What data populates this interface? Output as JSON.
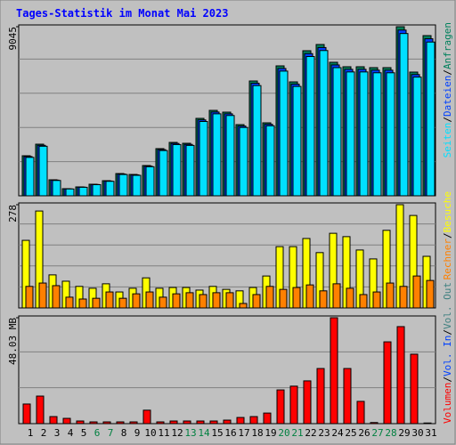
{
  "title": "Tages-Statistik im Monat Mai 2023",
  "legend_separator": "/",
  "chart_data": [
    {
      "type": "bar",
      "series": [
        {
          "name": "Anfragen",
          "color": "#00805c",
          "values": [
            2142,
            2761,
            857,
            381,
            476,
            619,
            809,
            1190,
            1143,
            1619,
            2523,
            2856,
            2809,
            4142,
            4570,
            4475,
            3808,
            6141,
            3904,
            6950,
            6093,
            7760,
            8093,
            7141,
            6903,
            6903,
            6855,
            6855,
            9045,
            6617,
            8569
          ]
        },
        {
          "name": "Dateien",
          "color": "#0040ff",
          "values": [
            2100,
            2700,
            840,
            370,
            465,
            605,
            790,
            1165,
            1120,
            1585,
            2470,
            2800,
            2750,
            4060,
            4480,
            4385,
            3730,
            6020,
            3825,
            6810,
            5970,
            7605,
            7930,
            7000,
            6765,
            6765,
            6720,
            6720,
            8865,
            6485,
            8400
          ]
        },
        {
          "name": "Seiten",
          "color": "#00e0ff",
          "values": [
            2055,
            2650,
            820,
            365,
            455,
            595,
            775,
            1140,
            1095,
            1555,
            2420,
            2740,
            2695,
            3975,
            4385,
            4295,
            3655,
            5895,
            3745,
            6670,
            5850,
            7450,
            7770,
            6855,
            6625,
            6625,
            6580,
            6580,
            8680,
            6350,
            8225
          ]
        }
      ],
      "ylim": [
        0,
        9045
      ],
      "yticks": [
        9045
      ],
      "grid_divisions": 5
    },
    {
      "type": "bar",
      "series": [
        {
          "name": "Besuche",
          "color": "#ffff00",
          "values": [
            182,
            261,
            89,
            72,
            58,
            53,
            65,
            43,
            53,
            81,
            53,
            55,
            55,
            48,
            58,
            50,
            46,
            55,
            86,
            165,
            165,
            187,
            149,
            201,
            192,
            156,
            132,
            209,
            278,
            249,
            139
          ]
        },
        {
          "name": "Rechner",
          "color": "#ff8000",
          "values": [
            58,
            67,
            60,
            29,
            24,
            26,
            43,
            26,
            38,
            43,
            29,
            38,
            41,
            36,
            41,
            41,
            12,
            36,
            58,
            50,
            55,
            62,
            46,
            65,
            53,
            36,
            43,
            67,
            58,
            86,
            74
          ]
        }
      ],
      "ylim": [
        0,
        278
      ],
      "yticks": [
        278
      ],
      "grid_divisions": 5
    },
    {
      "type": "bar",
      "categories": [
        "1",
        "2",
        "3",
        "4",
        "5",
        "6",
        "7",
        "8",
        "9",
        "10",
        "11",
        "12",
        "13",
        "14",
        "15",
        "16",
        "17",
        "18",
        "19",
        "20",
        "21",
        "22",
        "23",
        "24",
        "25",
        "26",
        "27",
        "28",
        "29",
        "30",
        "31"
      ],
      "category_colors": [
        "#000000",
        "#000000",
        "#000000",
        "#000000",
        "#000000",
        "#008040",
        "#008040",
        "#000000",
        "#000000",
        "#000000",
        "#000000",
        "#000000",
        "#008040",
        "#008040",
        "#000000",
        "#000000",
        "#000000",
        "#000000",
        "#000000",
        "#008040",
        "#008040",
        "#000000",
        "#000000",
        "#000000",
        "#000000",
        "#000000",
        "#008040",
        "#008040",
        "#000000",
        "#000000",
        "#000000"
      ],
      "series": [
        {
          "name": "Volumen",
          "color": "#ff0000",
          "values": [
            8.9,
            12.5,
            3.2,
            2.4,
            1.2,
            0.8,
            0.8,
            0.8,
            0.8,
            6.1,
            0.8,
            1.2,
            1.2,
            1.2,
            1.2,
            1.6,
            2.8,
            3.2,
            4.8,
            15.3,
            17.0,
            19.4,
            25.0,
            48.03,
            25.0,
            10.1,
            0.5,
            37.1,
            44.0,
            31.5,
            0.3
          ]
        }
      ],
      "legend_extra": [
        {
          "name": "Vol. In",
          "color": "#0040ff"
        },
        {
          "name": "Vol. Out",
          "color": "#408080"
        }
      ],
      "ylim": [
        0,
        48.03
      ],
      "yticks": [
        {
          "value": 48.03,
          "label": "48.03 MB"
        }
      ],
      "grid_divisions": 3
    }
  ]
}
